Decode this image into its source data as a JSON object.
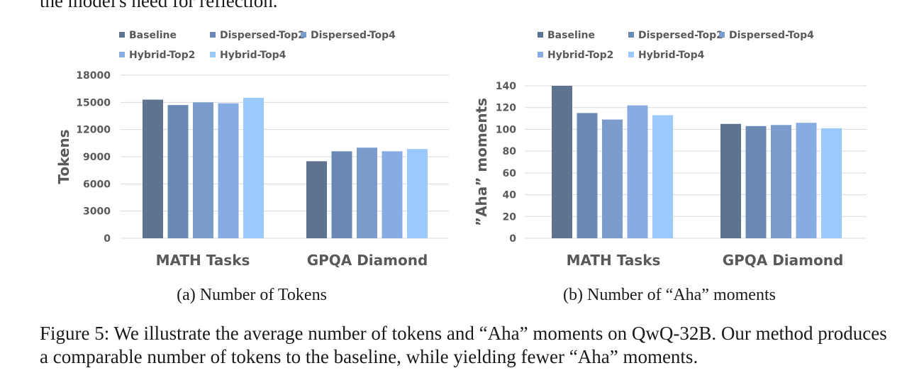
{
  "top_text": "the model's need for reflection.",
  "legend": [
    "Baseline",
    "Dispersed-Top2",
    "Dispersed-Top4",
    "Hybrid-Top2",
    "Hybrid-Top4"
  ],
  "colors": {
    "series": [
      "#5e7390",
      "#6a89b4",
      "#7b9bcd",
      "#87abe3",
      "#9cc9fc"
    ],
    "grid": "#d9d9d9",
    "text": "#595959"
  },
  "chart_data": [
    {
      "type": "bar",
      "categories": [
        "MATH Tasks",
        "GPQA Diamond"
      ],
      "series": [
        {
          "name": "Baseline",
          "values": [
            15300,
            8500
          ]
        },
        {
          "name": "Dispersed-Top2",
          "values": [
            14700,
            9600
          ]
        },
        {
          "name": "Dispersed-Top4",
          "values": [
            15000,
            10000
          ]
        },
        {
          "name": "Hybrid-Top2",
          "values": [
            14900,
            9600
          ]
        },
        {
          "name": "Hybrid-Top4",
          "values": [
            15500,
            9850
          ]
        }
      ],
      "title": "",
      "xlabel": "",
      "ylabel": "Tokens",
      "ylim": [
        0,
        18000
      ],
      "yticks": [
        0,
        3000,
        6000,
        9000,
        12000,
        15000,
        18000
      ],
      "grid": true,
      "legend_position": "top-left"
    },
    {
      "type": "bar",
      "categories": [
        "MATH Tasks",
        "GPQA Diamond"
      ],
      "series": [
        {
          "name": "Baseline",
          "values": [
            140,
            105
          ]
        },
        {
          "name": "Dispersed-Top2",
          "values": [
            115,
            103
          ]
        },
        {
          "name": "Dispersed-Top4",
          "values": [
            109,
            104
          ]
        },
        {
          "name": "Hybrid-Top2",
          "values": [
            122,
            106
          ]
        },
        {
          "name": "Hybrid-Top4",
          "values": [
            113,
            101
          ]
        }
      ],
      "title": "",
      "xlabel": "",
      "ylabel": "”Aha” moments",
      "ylim": [
        0,
        140
      ],
      "yticks": [
        0,
        20,
        40,
        60,
        80,
        100,
        120,
        140
      ],
      "grid": true,
      "legend_position": "top-left"
    }
  ],
  "subcaptions": [
    "(a) Number of Tokens",
    "(b) Number of “Aha” moments"
  ],
  "caption": "Figure 5: We illustrate the average number of tokens and “Aha” moments on QwQ-32B. Our method produces a comparable number of tokens to the baseline, while yielding fewer “Aha” moments."
}
